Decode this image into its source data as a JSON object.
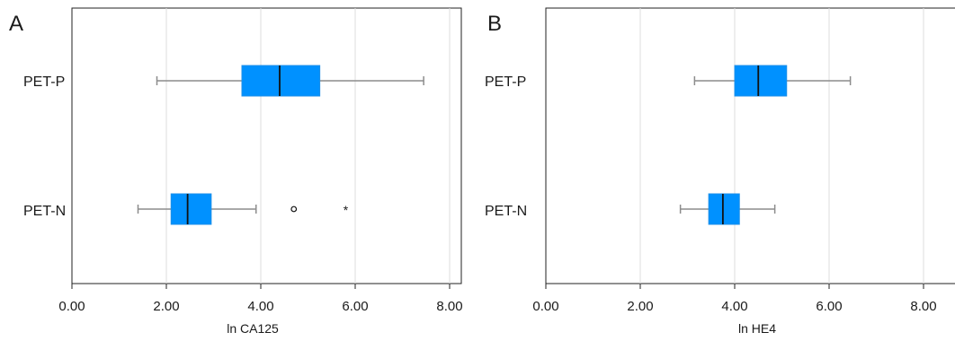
{
  "colors": {
    "box_fill": "#0091ff",
    "box_stroke": "#1c8fe8",
    "median": "#111111",
    "whisker": "#8c8c8c",
    "frame": "#222222",
    "grid": "#dcdcdc"
  },
  "chart_data": [
    {
      "type": "boxplot",
      "orientation": "horizontal",
      "panel_label": "A",
      "xlabel": "ln CA125",
      "xlim": [
        0,
        8.8
      ],
      "xticks": [
        0,
        2,
        4,
        6,
        8
      ],
      "xtick_labels": [
        "0.00",
        "2.00",
        "4.00",
        "6.00",
        "8.00"
      ],
      "grid": "vertical",
      "categories": [
        "PET-P",
        "PET-N"
      ],
      "boxes": [
        {
          "category": "PET-P",
          "whisker_low": 1.8,
          "q1": 3.6,
          "median": 4.4,
          "q3": 5.25,
          "whisker_high": 7.45,
          "outliers": []
        },
        {
          "category": "PET-N",
          "whisker_low": 1.4,
          "q1": 2.1,
          "median": 2.45,
          "q3": 2.95,
          "whisker_high": 3.9,
          "outliers": [
            {
              "value": 4.7,
              "marker": "circle"
            },
            {
              "value": 5.8,
              "marker": "star"
            }
          ]
        }
      ]
    },
    {
      "type": "boxplot",
      "orientation": "horizontal",
      "panel_label": "B",
      "xlabel": "ln HE4",
      "xlim": [
        0,
        8.8
      ],
      "xticks": [
        0,
        2,
        4,
        6,
        8
      ],
      "xtick_labels": [
        "0.00",
        "2.00",
        "4.00",
        "6.00",
        "8.00"
      ],
      "grid": "vertical",
      "categories": [
        "PET-P",
        "PET-N"
      ],
      "boxes": [
        {
          "category": "PET-P",
          "whisker_low": 3.15,
          "q1": 4.0,
          "median": 4.5,
          "q3": 5.1,
          "whisker_high": 6.45,
          "outliers": []
        },
        {
          "category": "PET-N",
          "whisker_low": 2.85,
          "q1": 3.45,
          "median": 3.75,
          "q3": 4.1,
          "whisker_high": 4.85,
          "outliers": []
        }
      ]
    }
  ]
}
